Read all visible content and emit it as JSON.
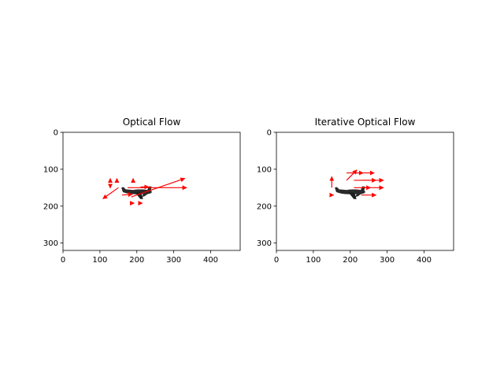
{
  "chart_data": [
    {
      "type": "quiver",
      "title": "Optical Flow",
      "xlim": [
        0,
        480
      ],
      "ylim": [
        320,
        0
      ],
      "y_inverted": true,
      "xticks": [
        0,
        100,
        200,
        300,
        400
      ],
      "yticks": [
        0,
        100,
        200,
        300
      ],
      "grid": false,
      "background_image": "airplane-silhouette",
      "arrow_color": "#ff0000",
      "vectors": [
        {
          "x": 175,
          "y": 150,
          "u": 160,
          "v": 0
        },
        {
          "x": 185,
          "y": 175,
          "u": 145,
          "v": -50
        },
        {
          "x": 150,
          "y": 150,
          "u": -42,
          "v": 30
        },
        {
          "x": 160,
          "y": 170,
          "u": 28,
          "v": -2
        },
        {
          "x": 210,
          "y": 148,
          "u": 22,
          "v": 0
        },
        {
          "x": 128,
          "y": 128,
          "u": 0,
          "v": -3
        },
        {
          "x": 146,
          "y": 128,
          "u": 0,
          "v": -3
        },
        {
          "x": 190,
          "y": 128,
          "u": 0,
          "v": -3
        },
        {
          "x": 128,
          "y": 148,
          "u": 0,
          "v": 3
        },
        {
          "x": 190,
          "y": 192,
          "u": 3,
          "v": 0
        },
        {
          "x": 212,
          "y": 192,
          "u": 3,
          "v": 0
        }
      ]
    },
    {
      "type": "quiver",
      "title": "Iterative Optical Flow",
      "xlim": [
        0,
        480
      ],
      "ylim": [
        320,
        0
      ],
      "y_inverted": true,
      "xticks": [
        0,
        100,
        200,
        300,
        400
      ],
      "yticks": [
        0,
        100,
        200,
        300
      ],
      "grid": false,
      "background_image": "airplane-silhouette",
      "arrow_color": "#ff0000",
      "vectors": [
        {
          "x": 190,
          "y": 110,
          "u": 45,
          "v": 0
        },
        {
          "x": 215,
          "y": 110,
          "u": 50,
          "v": 0
        },
        {
          "x": 190,
          "y": 130,
          "u": 28,
          "v": -28
        },
        {
          "x": 210,
          "y": 130,
          "u": 60,
          "v": 0
        },
        {
          "x": 230,
          "y": 130,
          "u": 60,
          "v": 0
        },
        {
          "x": 210,
          "y": 150,
          "u": 45,
          "v": 0
        },
        {
          "x": 230,
          "y": 150,
          "u": 60,
          "v": 0
        },
        {
          "x": 230,
          "y": 170,
          "u": 40,
          "v": 0
        },
        {
          "x": 150,
          "y": 150,
          "u": 0,
          "v": -30
        },
        {
          "x": 150,
          "y": 170,
          "u": 5,
          "v": 0
        }
      ]
    }
  ]
}
